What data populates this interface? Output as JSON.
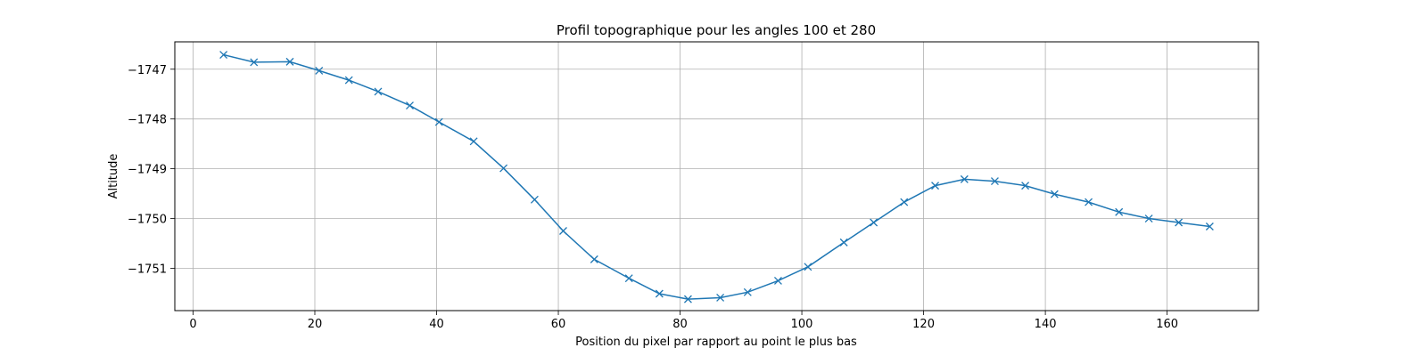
{
  "chart_data": {
    "type": "line",
    "title": "Profil topographique pour les angles 100 et 280",
    "xlabel": "Position du pixel par rapport au point le plus bas",
    "ylabel": "Altitude",
    "xlim": [
      -3,
      175
    ],
    "ylim": [
      -1751.85,
      -1746.45
    ],
    "xticks": [
      0,
      20,
      40,
      60,
      80,
      100,
      120,
      140,
      160
    ],
    "yticks": [
      -1747,
      -1748,
      -1749,
      -1750,
      -1751
    ],
    "ytick_labels": [
      "−1747",
      "−1748",
      "−1749",
      "−1750",
      "−1751"
    ],
    "grid": true,
    "marker": "x",
    "line_color": "#1f77b4",
    "series": [
      {
        "x": [
          5,
          10,
          15.9,
          20.7,
          25.6,
          30.4,
          35.6,
          40.4,
          46.1,
          51,
          56.1,
          60.8,
          65.9,
          71.6,
          76.6,
          81.3,
          86.6,
          91.1,
          96.1,
          101,
          106.9,
          111.8,
          116.8,
          121.9,
          126.7,
          131.7,
          136.7,
          141.5,
          147.1,
          152.1,
          157,
          161.9,
          167
        ],
        "y": [
          -1746.71,
          -1746.86,
          -1746.85,
          -1747.03,
          -1747.22,
          -1747.45,
          -1747.73,
          -1748.06,
          -1748.45,
          -1748.99,
          -1749.62,
          -1750.25,
          -1750.82,
          -1751.2,
          -1751.51,
          -1751.62,
          -1751.59,
          -1751.48,
          -1751.25,
          -1750.97,
          -1750.48,
          -1750.08,
          -1749.67,
          -1749.34,
          -1749.21,
          -1749.25,
          -1749.34,
          -1749.51,
          -1749.67,
          -1749.87,
          -1750.0,
          -1750.08,
          -1750.16
        ]
      }
    ]
  }
}
